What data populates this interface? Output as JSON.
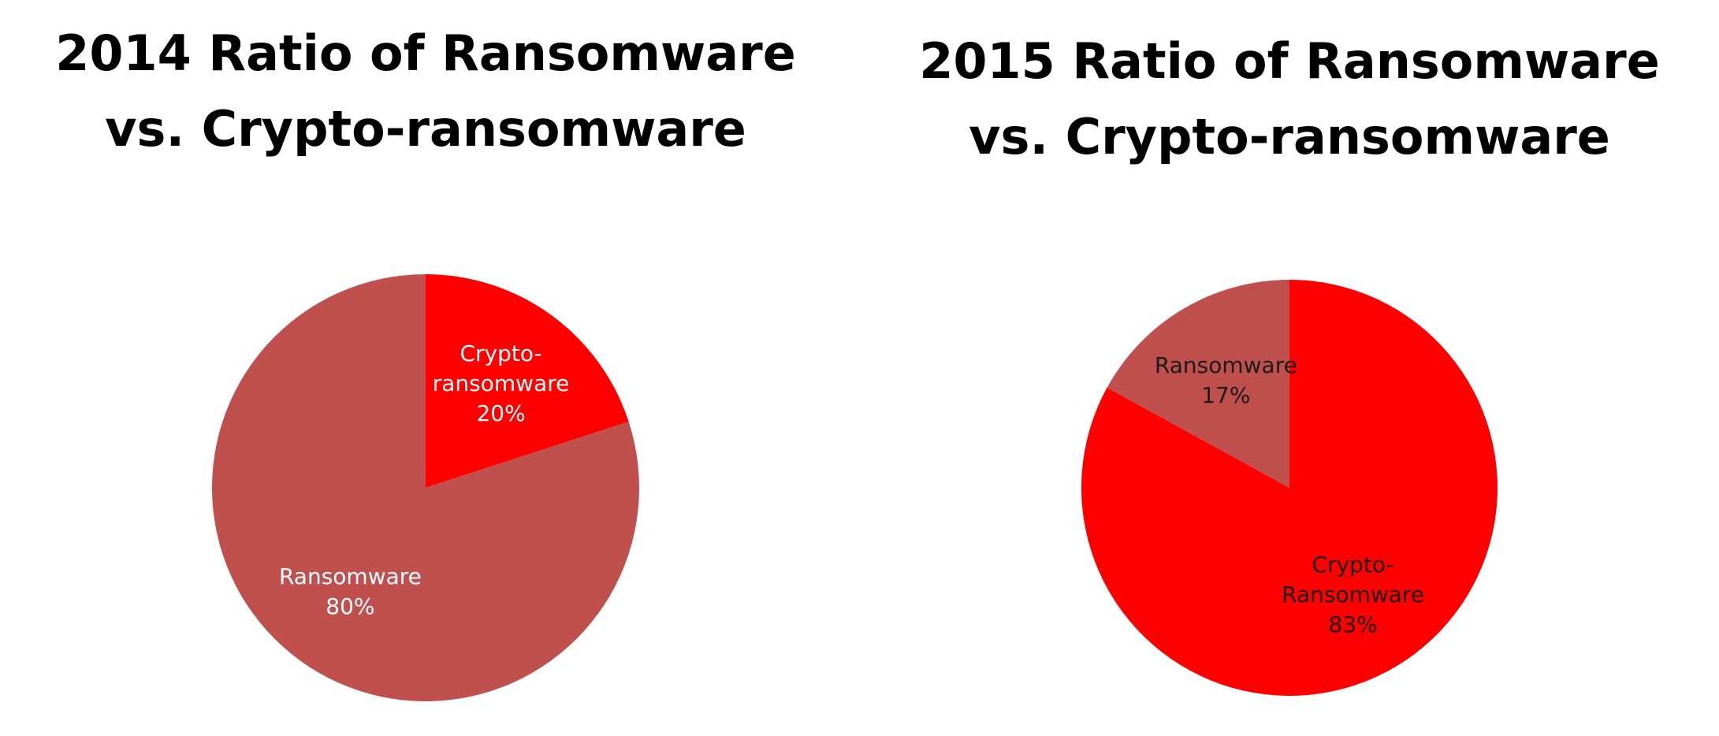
{
  "chart_data": [
    {
      "type": "pie",
      "title": "2014 Ratio of Ransomware vs. Crypto-ransomware",
      "categories": [
        "Crypto-ransomware",
        "Ransomware"
      ],
      "values": [
        20,
        80
      ],
      "value_labels": [
        "20%",
        "80%"
      ],
      "colors": [
        "#ff0000",
        "#c0504d"
      ],
      "label_color": "#ffffff"
    },
    {
      "type": "pie",
      "title": "2015 Ratio of Ransomware vs. Crypto-ransomware",
      "categories": [
        "Crypto-Ransomware",
        "Ransomware"
      ],
      "values": [
        83,
        17
      ],
      "value_labels": [
        "83%",
        "17%"
      ],
      "colors": [
        "#ff0000",
        "#c0504d"
      ],
      "label_color": "#1a1a1a"
    }
  ]
}
